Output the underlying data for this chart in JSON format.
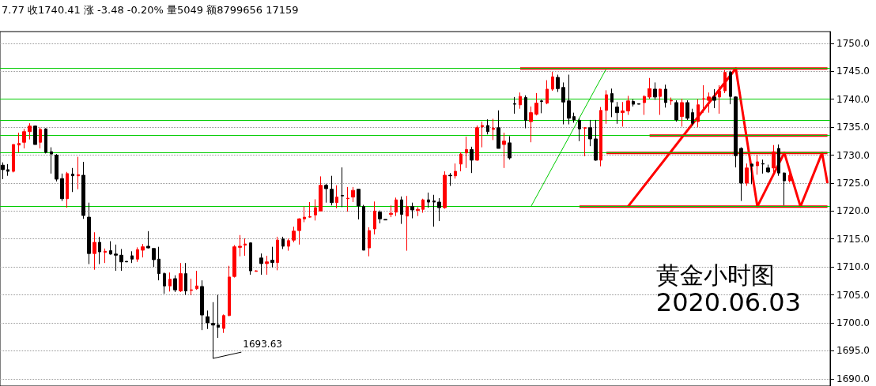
{
  "chart_data": {
    "type": "candlestick",
    "title": "黄金小时图",
    "subtitle": "2020.06.03",
    "annotations": [
      "7.77 收1740.41 涨 -3.48 -0.20% 量5049 额8799656 17159",
      "1693.63"
    ],
    "categories": [
      null,
      null,
      null,
      null,
      null,
      null,
      null,
      null,
      null,
      null,
      null,
      null,
      null,
      null,
      null,
      null,
      null,
      null,
      null,
      null,
      null,
      null,
      null,
      null,
      null,
      null,
      null,
      null,
      null,
      null,
      null,
      null,
      null,
      null,
      null,
      null,
      null,
      null,
      null,
      null,
      null,
      null,
      null,
      null,
      null,
      null,
      null,
      null,
      null,
      null,
      null,
      null,
      null,
      null,
      null,
      null,
      null,
      null,
      null,
      null,
      null,
      null,
      null,
      null,
      null,
      null,
      null,
      null,
      null,
      null,
      null,
      null,
      null,
      null,
      null,
      null,
      null,
      null,
      null,
      null,
      null,
      null,
      null,
      null,
      null,
      null,
      null,
      null,
      null,
      null,
      null,
      null,
      null,
      null,
      null,
      null,
      null,
      null,
      null,
      null,
      null,
      null,
      null,
      null,
      null,
      null,
      null,
      null,
      null,
      null,
      null,
      null,
      null,
      null,
      null,
      null,
      null,
      null,
      null,
      null,
      null,
      null,
      null,
      null,
      null,
      null,
      null,
      null,
      null,
      null,
      null,
      null,
      null,
      null,
      null,
      null,
      null,
      null,
      null,
      null,
      null,
      null,
      null,
      null,
      null,
      null,
      null,
      null,
      null,
      null,
      null,
      null,
      null,
      null
    ],
    "ohlc": [
      [
        1728.2,
        1728.7,
        1725.7,
        1727.4
      ],
      [
        1727.4,
        1728.4,
        1726.3,
        1727.1
      ],
      [
        1727.1,
        1731.9,
        1726.9,
        1731.9
      ],
      [
        1731.8,
        1734,
        1730.5,
        1732.1
      ],
      [
        1732.3,
        1734.7,
        1731.2,
        1734.2
      ],
      [
        1734.2,
        1735.7,
        1732.8,
        1735.2
      ],
      [
        1735.2,
        1735.3,
        1731.9,
        1731.9
      ],
      [
        1732.3,
        1735,
        1731.2,
        1734.6
      ],
      [
        1734.7,
        1734.8,
        1730.3,
        1730.5
      ],
      [
        1730.6,
        1731.4,
        1726.7,
        1730.2
      ],
      [
        1730,
        1730.2,
        1725.3,
        1725.7
      ],
      [
        1725.8,
        1726.7,
        1721.8,
        1722.2
      ],
      [
        1722.2,
        1727,
        1720.6,
        1726.7
      ],
      [
        1726.6,
        1727.7,
        1723.4,
        1726.3
      ],
      [
        1726.3,
        1729.7,
        1723.9,
        1726.5
      ],
      [
        1726.4,
        1728.8,
        1718.6,
        1719.2
      ],
      [
        1718.9,
        1721.5,
        1710.5,
        1712.4
      ],
      [
        1712.4,
        1716.2,
        1709.5,
        1714.4
      ],
      [
        1714.4,
        1715.4,
        1710.5,
        1712.7
      ],
      [
        1712.6,
        1713.3,
        1710.7,
        1712.8
      ],
      [
        1712.9,
        1714.6,
        1712.2,
        1712.3
      ],
      [
        1712.3,
        1714,
        1709.3,
        1712.1
      ],
      [
        1712.1,
        1713.2,
        1709.3,
        1710.9
      ],
      [
        1711,
        1711,
        1710.9,
        1710.9
      ],
      [
        1712,
        1712.8,
        1710.7,
        1711.4
      ],
      [
        1711.4,
        1713.5,
        1710.9,
        1713.1
      ],
      [
        1713,
        1714.1,
        1711.7,
        1713.6
      ],
      [
        1713.7,
        1716.4,
        1713.3,
        1713.4
      ],
      [
        1713.3,
        1713.3,
        1710,
        1711.3
      ],
      [
        1711.4,
        1713.6,
        1707.6,
        1708.8
      ],
      [
        1708.8,
        1709,
        1705.2,
        1706.6
      ],
      [
        1706.6,
        1709,
        1705.6,
        1707.8
      ],
      [
        1707.9,
        1708.5,
        1705.5,
        1705.9
      ],
      [
        1705.7,
        1710.7,
        1705.5,
        1708.8
      ],
      [
        1708.8,
        1710.7,
        1705,
        1705.7
      ],
      [
        1705.8,
        1707.9,
        1705,
        1705.9
      ],
      [
        1706.1,
        1709.3,
        1705.9,
        1706.6
      ],
      [
        1706.5,
        1707.6,
        1698.7,
        1701.4
      ],
      [
        1701.1,
        1702.2,
        1698.9,
        1700
      ],
      [
        1699.9,
        1703.7,
        1693.63,
        1699.6
      ],
      [
        1699.6,
        1705,
        1697.3,
        1699.2
      ],
      [
        1699,
        1701.5,
        1698.2,
        1701.3
      ],
      [
        1701.3,
        1710.2,
        1701.2,
        1708.2
      ],
      [
        1708.3,
        1713.9,
        1708.1,
        1713.6
      ],
      [
        1713.5,
        1715.7,
        1711.9,
        1713.7
      ],
      [
        1713.9,
        1715.1,
        1712,
        1714.1
      ],
      [
        1714.3,
        1714.4,
        1708.6,
        1709.3
      ],
      [
        1709.2,
        1709.4,
        1709.2,
        1709.3
      ],
      [
        1711.6,
        1712.4,
        1708.6,
        1710.6
      ],
      [
        1710.6,
        1712,
        1708.6,
        1710.9
      ],
      [
        1711.2,
        1713.6,
        1709.9,
        1710.8
      ],
      [
        1710.8,
        1715.4,
        1709.4,
        1714.8
      ],
      [
        1715,
        1715.4,
        1713.2,
        1713.7
      ],
      [
        1713.7,
        1715.1,
        1712.9,
        1714.7
      ],
      [
        1714.8,
        1717.2,
        1714.4,
        1716.4
      ],
      [
        1716.5,
        1718.7,
        1714,
        1718.6
      ],
      [
        1718.6,
        1720.8,
        1718,
        1718.9
      ],
      [
        1718.9,
        1721.6,
        1718.8,
        1719
      ],
      [
        1719.3,
        1722.1,
        1718.3,
        1720.6
      ],
      [
        1720,
        1726.2,
        1720,
        1724.6
      ],
      [
        1724.6,
        1724.9,
        1721.5,
        1724
      ],
      [
        1723.9,
        1726.3,
        1721,
        1721.5
      ],
      [
        1721.5,
        1724.6,
        1720.5,
        1722.5
      ],
      [
        1722.8,
        1727.8,
        1720.7,
        1722.7
      ],
      [
        1722.2,
        1724.3,
        1719.9,
        1722.3
      ],
      [
        1722.5,
        1724.3,
        1721.6,
        1723.7
      ],
      [
        1723.9,
        1723.9,
        1718.5,
        1720.9
      ],
      [
        1720.8,
        1721.1,
        1713,
        1713
      ],
      [
        1713.4,
        1717.1,
        1711.9,
        1716.5
      ],
      [
        1716.8,
        1721.7,
        1715.8,
        1720
      ],
      [
        1719.8,
        1720.1,
        1717.8,
        1718.6
      ],
      [
        1718.5,
        1718.5,
        1718.4,
        1718.4
      ],
      [
        1719.4,
        1721,
        1718.9,
        1719.6
      ],
      [
        1719.8,
        1722.4,
        1719.1,
        1722
      ],
      [
        1722,
        1722.6,
        1717.7,
        1719.4
      ],
      [
        1719.1,
        1722.7,
        1712.9,
        1720.8
      ],
      [
        1720.8,
        1721.5,
        1718.7,
        1720.2
      ],
      [
        1720.1,
        1720.7,
        1719.1,
        1720.3
      ],
      [
        1720.3,
        1722.2,
        1719.7,
        1722
      ],
      [
        1722,
        1723.3,
        1720.6,
        1721.6
      ],
      [
        1721.8,
        1722.9,
        1717.2,
        1721.6
      ],
      [
        1721.6,
        1722.3,
        1718.2,
        1720.6
      ],
      [
        1720.6,
        1727.1,
        1720.4,
        1726.4
      ],
      [
        1726.4,
        1726.8,
        1724.5,
        1726.3
      ],
      [
        1726.3,
        1728.5,
        1725.8,
        1727.1
      ],
      [
        1728.4,
        1730.5,
        1727.1,
        1730.2
      ],
      [
        1730.4,
        1733.3,
        1727.7,
        1731
      ],
      [
        1731,
        1731.5,
        1726.8,
        1729.1
      ],
      [
        1729.1,
        1735.3,
        1729,
        1734.9
      ],
      [
        1735.1,
        1736,
        1731.4,
        1735.3
      ],
      [
        1735.3,
        1736.4,
        1733.7,
        1734.2
      ],
      [
        1734.6,
        1736.5,
        1732.7,
        1734.8
      ],
      [
        1734.9,
        1738,
        1731.2,
        1731.2
      ],
      [
        1731.9,
        1734,
        1727.7,
        1732.5
      ],
      [
        1732.2,
        1733.4,
        1729.2,
        1729.5
      ],
      [
        1739.2,
        1740.4,
        1737.4,
        1739.1
      ],
      [
        1739,
        1741.2,
        1738.3,
        1740.5
      ],
      [
        1740.3,
        1740.7,
        1734.8,
        1736.2
      ],
      [
        1736,
        1738.7,
        1732.3,
        1737.6
      ],
      [
        1737.3,
        1741.1,
        1737.1,
        1739.3
      ],
      [
        1739.7,
        1739.9,
        1737.5,
        1739.6
      ],
      [
        1739.3,
        1743.4,
        1739.1,
        1741.8
      ],
      [
        1741.8,
        1744.9,
        1741.5,
        1744
      ],
      [
        1743.9,
        1744.4,
        1741.3,
        1741.9
      ],
      [
        1742.1,
        1743,
        1735.5,
        1739.5
      ],
      [
        1739.7,
        1744.4,
        1735.5,
        1736.6
      ],
      [
        1736.9,
        1737.6,
        1735.8,
        1736.3
      ],
      [
        1736.2,
        1736.6,
        1732.5,
        1734.7
      ],
      [
        1734.8,
        1735,
        1729.8,
        1734.9
      ],
      [
        1734.9,
        1736.3,
        1731.6,
        1732.9
      ],
      [
        1732.9,
        1736.3,
        1729,
        1729.1
      ],
      [
        1729.1,
        1738.6,
        1728,
        1738
      ],
      [
        1738,
        1741.6,
        1735.6,
        1740.8
      ],
      [
        1741,
        1741.9,
        1736.8,
        1739.5
      ],
      [
        1738.6,
        1739.5,
        1735.6,
        1737.6
      ],
      [
        1737.6,
        1739.5,
        1735.1,
        1737.9
      ],
      [
        1737.9,
        1740.6,
        1737.2,
        1739.7
      ],
      [
        1739.6,
        1740,
        1738.7,
        1739.1
      ],
      [
        1739.2,
        1739.2,
        1739.1,
        1739.1
      ],
      [
        1739.4,
        1740.7,
        1737.2,
        1740.5
      ],
      [
        1740.4,
        1743.8,
        1740.1,
        1741.9
      ],
      [
        1741.8,
        1743,
        1739.9,
        1740.4
      ],
      [
        1740.5,
        1741.9,
        1737.2,
        1741.8
      ],
      [
        1741.8,
        1742.6,
        1738.5,
        1739.4
      ],
      [
        1739.7,
        1740.3,
        1739,
        1739.8
      ],
      [
        1739.4,
        1739.8,
        1736,
        1736.3
      ],
      [
        1736.9,
        1740.1,
        1735.1,
        1739.4
      ],
      [
        1739.4,
        1739.8,
        1736.3,
        1736.6
      ],
      [
        1737.6,
        1738.3,
        1735.3,
        1735.7
      ],
      [
        1736,
        1740,
        1735,
        1739
      ],
      [
        1740,
        1742.5,
        1737.6,
        1740.1
      ],
      [
        1739.8,
        1741.2,
        1737.6,
        1740.4
      ],
      [
        1740.4,
        1741.8,
        1738.4,
        1739.8
      ],
      [
        1740.4,
        1742.5,
        1737.4,
        1741.5
      ],
      [
        1741.5,
        1745.2,
        1741.1,
        1744.8
      ],
      [
        1744.8,
        1745.1,
        1739.1,
        1740.5
      ],
      [
        1740.4,
        1740.5,
        1727.8,
        1729.9
      ],
      [
        1731.2,
        1731.4,
        1721.8,
        1725
      ],
      [
        1725,
        1728.5,
        1724.5,
        1727.7
      ],
      [
        1728.4,
        1728.4,
        1724.8,
        1728
      ],
      [
        1728.1,
        1730,
        1726.5,
        1728.8
      ],
      [
        1728.5,
        1729.2,
        1726.7,
        1728.4
      ],
      [
        1727.7,
        1728.3,
        1726.8,
        1727
      ],
      [
        1727.7,
        1731.8,
        1726.8,
        1730.6
      ],
      [
        1731.2,
        1731.9,
        1726.3,
        1726.8
      ],
      [
        1726.8,
        1726.9,
        1721,
        1725.4
      ],
      [
        1725.4,
        1727,
        1725.1,
        1726.4
      ],
      null,
      null,
      null,
      null,
      null,
      null,
      null
    ],
    "colors": [
      "#000000",
      "#000000",
      "#ff0000",
      "#ff0000",
      "#ff0000",
      "#ff0000",
      "#000000",
      "#ff0000",
      "#000000",
      "#000000",
      "#000000",
      "#000000",
      "#ff0000",
      "#000000",
      "#ff0000",
      "#000000",
      "#000000",
      "#ff0000",
      "#000000",
      "#ff0000",
      "#000000",
      "#000000",
      "#000000",
      "#000000",
      "#000000",
      "#ff0000",
      "#ff0000",
      "#000000",
      "#000000",
      "#000000",
      "#000000",
      "#ff0000",
      "#000000",
      "#ff0000",
      "#000000",
      "#ff0000",
      "#ff0000",
      "#000000",
      "#000000",
      "#000000",
      "#000000",
      "#ff0000",
      "#ff0000",
      "#ff0000",
      "#ff0000",
      "#ff0000",
      "#000000",
      "#ff0000",
      "#000000",
      "#ff0000",
      "#000000",
      "#ff0000",
      "#000000",
      "#ff0000",
      "#ff0000",
      "#ff0000",
      "#ff0000",
      "#ff0000",
      "#ff0000",
      "#ff0000",
      "#000000",
      "#000000",
      "#ff0000",
      "#000000",
      "#ff0000",
      "#ff0000",
      "#000000",
      "#000000",
      "#ff0000",
      "#ff0000",
      "#000000",
      "#000000",
      "#ff0000",
      "#ff0000",
      "#000000",
      "#ff0000",
      "#000000",
      "#ff0000",
      "#ff0000",
      "#000000",
      "#000000",
      "#000000",
      "#ff0000",
      "#000000",
      "#ff0000",
      "#ff0000",
      "#ff0000",
      "#000000",
      "#ff0000",
      "#ff0000",
      "#000000",
      "#ff0000",
      "#000000",
      "#ff0000",
      "#000000",
      "#000000",
      "#ff0000",
      "#000000",
      "#ff0000",
      "#ff0000",
      "#000000",
      "#ff0000",
      "#ff0000",
      "#000000",
      "#000000",
      "#000000",
      "#000000",
      "#000000",
      "#ff0000",
      "#000000",
      "#000000",
      "#ff0000",
      "#ff0000",
      "#000000",
      "#000000",
      "#ff0000",
      "#ff0000",
      "#000000",
      "#000000",
      "#ff0000",
      "#ff0000",
      "#000000",
      "#ff0000",
      "#000000",
      "#ff0000",
      "#000000",
      "#ff0000",
      "#000000",
      "#000000",
      "#ff0000",
      "#ff0000",
      "#ff0000",
      "#000000",
      "#ff0000",
      "#ff0000",
      "#000000",
      "#000000",
      "#000000",
      "#ff0000",
      "#000000",
      "#ff0000",
      "#000000",
      "#000000",
      "#ff0000",
      "#000000",
      "#000000",
      "#ff0000",
      null,
      null,
      null,
      null,
      null,
      null,
      null
    ],
    "ylim": [
      1688.7,
      1752.1
    ],
    "yticks": [
      {
        "value": 1690,
        "label": "1690.0"
      },
      {
        "value": 1695,
        "label": "1695.0"
      },
      {
        "value": 1700,
        "label": "1700.0"
      },
      {
        "value": 1705,
        "label": "1705.0"
      },
      {
        "value": 1710,
        "label": "1710.0"
      },
      {
        "value": 1715,
        "label": "1715.0"
      },
      {
        "value": 1720,
        "label": "1720.0"
      },
      {
        "value": 1725,
        "label": "1725.0"
      },
      {
        "value": 1730,
        "label": "1730.0"
      },
      {
        "value": 1735,
        "label": "1735.0"
      },
      {
        "value": 1740,
        "label": "1740.0"
      },
      {
        "value": 1745,
        "label": "1745.0"
      },
      {
        "value": 1750,
        "label": "1750.0"
      }
    ],
    "tick_labels": "y",
    "grid": "y",
    "ref_lines": [
      {
        "axis": "y",
        "value": 1745.5,
        "color": "#00cc00"
      },
      {
        "axis": "y",
        "value": 1740,
        "color": "#00cc00"
      },
      {
        "axis": "y",
        "value": 1736.3,
        "color": "#00cc00"
      },
      {
        "axis": "y",
        "value": 1733.5,
        "color": "#00cc00"
      },
      {
        "axis": "y",
        "value": 1730.4,
        "color": "#00cc00"
      },
      {
        "axis": "y",
        "value": 1720.8,
        "color": "#00cc00"
      }
    ],
    "series": [
      {
        "type": "line",
        "color": "#00cc00",
        "values": [
          null,
          null,
          null,
          null,
          null,
          null,
          null,
          null,
          null,
          null,
          null,
          null,
          null,
          null,
          null,
          null,
          null,
          null,
          null,
          null,
          null,
          null,
          null,
          null,
          null,
          null,
          null,
          null,
          null,
          null,
          null,
          null,
          null,
          null,
          null,
          null,
          null,
          null,
          null,
          null,
          null,
          null,
          null,
          null,
          null,
          null,
          null,
          null,
          null,
          null,
          null,
          null,
          null,
          null,
          null,
          null,
          null,
          null,
          null,
          null,
          null,
          null,
          null,
          null,
          null,
          null,
          null,
          null,
          null,
          null,
          null,
          null,
          null,
          null,
          null,
          null,
          null,
          null,
          null,
          null,
          null,
          null,
          null,
          null,
          null,
          null,
          null,
          null,
          null,
          null,
          null,
          null,
          null,
          null,
          null,
          null,
          null,
          null,
          1720.8,
          null,
          null,
          null,
          null,
          null,
          null,
          null,
          null,
          null,
          null,
          null,
          null,
          null,
          1745.5,
          null,
          null,
          null,
          null,
          null,
          null,
          null,
          null,
          null,
          null,
          null,
          null,
          null,
          null,
          null,
          null,
          null,
          null,
          null,
          null,
          null,
          null,
          null,
          null,
          null,
          null,
          null,
          null,
          null,
          null,
          null,
          null,
          null,
          null,
          null,
          null,
          null,
          null,
          null,
          null,
          null
        ]
      },
      {
        "type": "line",
        "color": "#ff0000",
        "values": [
          null,
          null,
          null,
          null,
          null,
          null,
          null,
          null,
          null,
          null,
          null,
          null,
          null,
          null,
          null,
          null,
          null,
          null,
          null,
          null,
          null,
          null,
          null,
          null,
          null,
          null,
          null,
          null,
          null,
          null,
          null,
          null,
          null,
          null,
          null,
          null,
          null,
          null,
          null,
          null,
          null,
          null,
          null,
          null,
          null,
          null,
          null,
          null,
          null,
          null,
          null,
          null,
          null,
          null,
          null,
          null,
          null,
          null,
          null,
          null,
          null,
          null,
          null,
          null,
          null,
          null,
          null,
          null,
          null,
          null,
          null,
          null,
          null,
          null,
          null,
          null,
          null,
          null,
          null,
          null,
          null,
          null,
          null,
          null,
          null,
          null,
          null,
          null,
          null,
          null,
          null,
          null,
          null,
          null,
          null,
          null,
          1745.5,
          null,
          null,
          null,
          null,
          null,
          null,
          null,
          null,
          null,
          null,
          null,
          null,
          null,
          null,
          null,
          null,
          null,
          null,
          null,
          null,
          null,
          null,
          null,
          null,
          null,
          null,
          null,
          null,
          null,
          null,
          null,
          null,
          null,
          null,
          null,
          null,
          null,
          null,
          null,
          null,
          null,
          null,
          null,
          null,
          null,
          null,
          null,
          null,
          null,
          null,
          null,
          null,
          null,
          null,
          null,
          null,
          1745.5
        ]
      },
      {
        "type": "line",
        "color": "#ff0000",
        "values": [
          null,
          null,
          null,
          null,
          null,
          null,
          null,
          null,
          null,
          null,
          null,
          null,
          null,
          null,
          null,
          null,
          null,
          null,
          null,
          null,
          null,
          null,
          null,
          null,
          null,
          null,
          null,
          null,
          null,
          null,
          null,
          null,
          null,
          null,
          null,
          null,
          null,
          null,
          null,
          null,
          null,
          null,
          null,
          null,
          null,
          null,
          null,
          null,
          null,
          null,
          null,
          null,
          null,
          null,
          null,
          null,
          null,
          null,
          null,
          null,
          null,
          null,
          null,
          null,
          null,
          null,
          null,
          null,
          null,
          null,
          null,
          null,
          null,
          null,
          null,
          null,
          null,
          null,
          null,
          null,
          null,
          null,
          null,
          null,
          null,
          null,
          null,
          null,
          null,
          null,
          null,
          null,
          null,
          null,
          null,
          null,
          null,
          null,
          null,
          null,
          null,
          null,
          null,
          null,
          null,
          null,
          null,
          null,
          null,
          null,
          null,
          null,
          null,
          null,
          null,
          null,
          null,
          null,
          null,
          null,
          1733.5,
          null,
          null,
          null,
          null,
          null,
          null,
          null,
          null,
          null,
          null,
          null,
          null,
          null,
          null,
          null,
          null,
          null,
          null,
          null,
          null,
          null,
          null,
          null,
          null,
          null,
          null,
          null,
          null,
          null,
          null,
          null,
          null,
          1733.5
        ]
      },
      {
        "type": "line",
        "color": "#ff0000",
        "values": [
          null,
          null,
          null,
          null,
          null,
          null,
          null,
          null,
          null,
          null,
          null,
          null,
          null,
          null,
          null,
          null,
          null,
          null,
          null,
          null,
          null,
          null,
          null,
          null,
          null,
          null,
          null,
          null,
          null,
          null,
          null,
          null,
          null,
          null,
          null,
          null,
          null,
          null,
          null,
          null,
          null,
          null,
          null,
          null,
          null,
          null,
          null,
          null,
          null,
          null,
          null,
          null,
          null,
          null,
          null,
          null,
          null,
          null,
          null,
          null,
          null,
          null,
          null,
          null,
          null,
          null,
          null,
          null,
          null,
          null,
          null,
          null,
          null,
          null,
          null,
          null,
          null,
          null,
          null,
          null,
          null,
          null,
          null,
          null,
          null,
          null,
          null,
          null,
          null,
          null,
          null,
          null,
          null,
          null,
          null,
          null,
          null,
          null,
          null,
          null,
          null,
          null,
          null,
          null,
          null,
          null,
          null,
          null,
          null,
          null,
          null,
          null,
          1730.4,
          null,
          null,
          null,
          null,
          null,
          null,
          null,
          null,
          null,
          null,
          null,
          null,
          null,
          null,
          null,
          null,
          null,
          null,
          null,
          null,
          null,
          null,
          null,
          null,
          null,
          null,
          null,
          null,
          null,
          null,
          null,
          null,
          null,
          null,
          null,
          null,
          null,
          null,
          null,
          null,
          1730.4
        ]
      },
      {
        "type": "line",
        "color": "#ff0000",
        "values": [
          null,
          null,
          null,
          null,
          null,
          null,
          null,
          null,
          null,
          null,
          null,
          null,
          null,
          null,
          null,
          null,
          null,
          null,
          null,
          null,
          null,
          null,
          null,
          null,
          null,
          null,
          null,
          null,
          null,
          null,
          null,
          null,
          null,
          null,
          null,
          null,
          null,
          null,
          null,
          null,
          null,
          null,
          null,
          null,
          null,
          null,
          null,
          null,
          null,
          null,
          null,
          null,
          null,
          null,
          null,
          null,
          null,
          null,
          null,
          null,
          null,
          null,
          null,
          null,
          null,
          null,
          null,
          null,
          null,
          null,
          null,
          null,
          null,
          null,
          null,
          null,
          null,
          null,
          null,
          null,
          null,
          null,
          null,
          null,
          null,
          null,
          null,
          null,
          null,
          null,
          null,
          null,
          null,
          null,
          null,
          null,
          null,
          null,
          null,
          null,
          null,
          null,
          null,
          null,
          null,
          null,
          null,
          1720.8,
          null,
          null,
          null,
          null,
          null,
          null,
          null,
          null,
          null,
          null,
          null,
          null,
          null,
          null,
          null,
          null,
          null,
          null,
          null,
          null,
          null,
          null,
          null,
          null,
          null,
          null,
          null,
          null,
          null,
          null,
          null,
          null,
          null,
          null,
          null,
          null,
          null,
          null,
          null,
          null,
          null,
          null,
          null,
          null,
          null,
          1720.8
        ]
      },
      {
        "type": "line",
        "color": "#ff0000",
        "values": [
          null,
          null,
          null,
          null,
          null,
          null,
          null,
          null,
          null,
          null,
          null,
          null,
          null,
          null,
          null,
          null,
          null,
          null,
          null,
          null,
          null,
          null,
          null,
          null,
          null,
          null,
          null,
          null,
          null,
          null,
          null,
          null,
          null,
          null,
          null,
          null,
          null,
          null,
          null,
          null,
          null,
          null,
          null,
          null,
          null,
          null,
          null,
          null,
          null,
          null,
          null,
          null,
          null,
          null,
          null,
          null,
          null,
          null,
          null,
          null,
          null,
          null,
          null,
          null,
          null,
          null,
          null,
          null,
          null,
          null,
          null,
          null,
          null,
          null,
          null,
          null,
          null,
          null,
          null,
          null,
          null,
          null,
          null,
          null,
          null,
          null,
          null,
          null,
          null,
          null,
          null,
          null,
          null,
          null,
          null,
          null,
          null,
          null,
          null,
          null,
          null,
          null,
          null,
          null,
          null,
          null,
          null,
          null,
          null,
          null,
          null,
          null,
          null,
          null,
          null,
          null,
          1720.8,
          null,
          null,
          null,
          null,
          null,
          null,
          null,
          null,
          null,
          null,
          null,
          null,
          null,
          null,
          null,
          null,
          null,
          null,
          null,
          1745.5,
          null,
          null,
          null,
          1720.8,
          null,
          null,
          null,
          null,
          1730.4,
          null,
          null,
          1720.8,
          null,
          null,
          null,
          1730.4,
          1725
        ]
      }
    ]
  }
}
